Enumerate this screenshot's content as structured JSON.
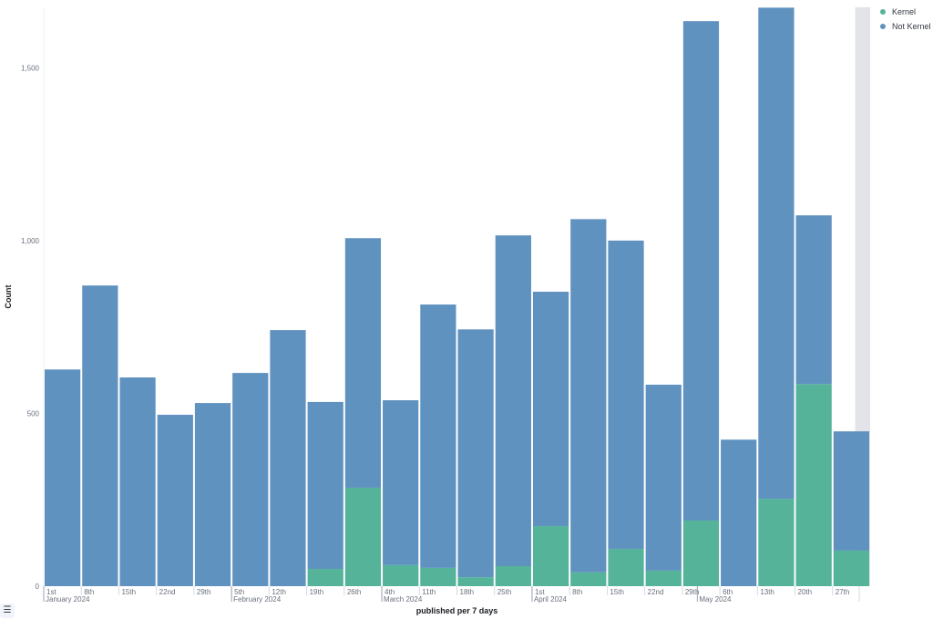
{
  "chart_data": {
    "type": "bar",
    "stacked": true,
    "xlabel": "published per 7 days",
    "ylabel": "Count",
    "ylim": [
      0,
      1675
    ],
    "yticks": [
      0,
      500,
      1000,
      1500
    ],
    "ytick_labels": [
      "0",
      "500",
      "1,000",
      "1,500"
    ],
    "categories": [
      "1st",
      "8th",
      "15th",
      "22nd",
      "29th",
      "5th",
      "12th",
      "19th",
      "26th",
      "4th",
      "11th",
      "18th",
      "25th",
      "1st",
      "8th",
      "15th",
      "22nd",
      "29th",
      "6th",
      "13th",
      "20th",
      "27th"
    ],
    "month_labels": [
      {
        "index": 0,
        "label": "January 2024"
      },
      {
        "index": 5,
        "label": "February 2024"
      },
      {
        "index": 9,
        "label": "March 2024"
      },
      {
        "index": 13,
        "label": "April 2024"
      },
      {
        "index": 17.4,
        "label": "May 2024"
      }
    ],
    "series": [
      {
        "name": "Kernel",
        "color": "#54b399",
        "values": [
          0,
          0,
          0,
          0,
          0,
          0,
          0,
          50,
          285,
          61,
          53,
          26,
          58,
          174,
          40,
          108,
          45,
          190,
          0,
          253,
          585,
          103
        ]
      },
      {
        "name": "Not Kernel",
        "color": "#6092c0",
        "values": [
          627,
          870,
          604,
          496,
          530,
          617,
          741,
          483,
          722,
          477,
          762,
          717,
          957,
          678,
          1022,
          892,
          538,
          1445,
          424,
          1421,
          488,
          345
        ]
      }
    ],
    "partial_bucket_index": 21,
    "legend": "top-right"
  },
  "legend_toggle_icon": "list-icon"
}
